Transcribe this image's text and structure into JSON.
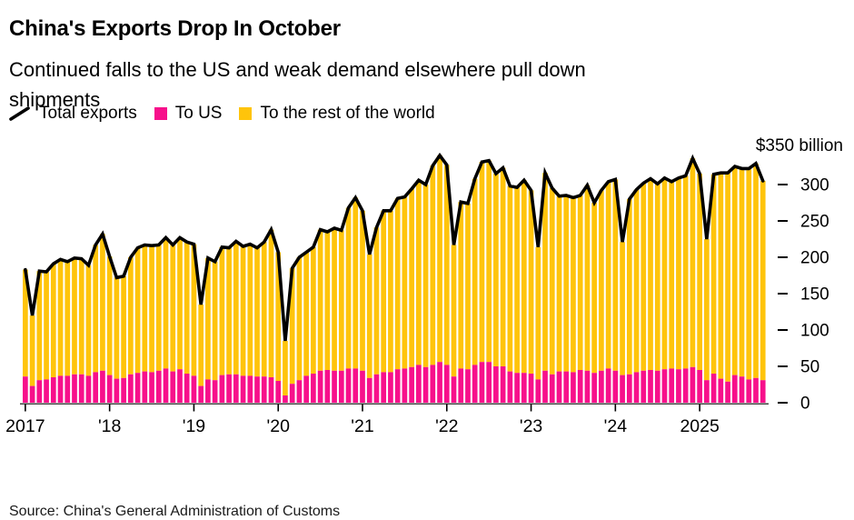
{
  "header": {
    "title": "China's Exports Drop In October",
    "subtitle_line1": "Continued falls to the US and weak demand elsewhere pull down",
    "subtitle_line2": "shipments"
  },
  "footer": {
    "source": "Source: China's General Administration of Customs"
  },
  "chart_data": {
    "type": "bar",
    "subtype": "stacked monthly bars with total line overlay",
    "unit": "USD billion",
    "frequency": "monthly",
    "x_start": "2017-01",
    "x_end": "2025-10",
    "ylim": [
      0,
      350
    ],
    "grid": false,
    "legend_position": "top-left",
    "y_axis": {
      "side": "right",
      "top_label": "$350 billion",
      "ticks": [
        0,
        50,
        100,
        150,
        200,
        250,
        300
      ]
    },
    "x_axis": {
      "years": [
        "2017",
        "'18",
        "'19",
        "'20",
        "'21",
        "'22",
        "'23",
        "'24",
        "2025"
      ]
    },
    "series": [
      {
        "id": "total",
        "name": "Total exports",
        "type": "line",
        "color": "#000000",
        "values": [
          183,
          120,
          181,
          180,
          191,
          197,
          194,
          199,
          198,
          189,
          217,
          232,
          201,
          172,
          174,
          200,
          213,
          217,
          216,
          217,
          227,
          217,
          227,
          221,
          218,
          135,
          199,
          194,
          214,
          213,
          222,
          215,
          218,
          213,
          221,
          238,
          207,
          85,
          185,
          200,
          207,
          214,
          238,
          235,
          240,
          237,
          268,
          282,
          264,
          204,
          241,
          264,
          264,
          281,
          283,
          294,
          306,
          300,
          326,
          340,
          327,
          217,
          276,
          274,
          308,
          331,
          333,
          315,
          323,
          298,
          296,
          306,
          292,
          214,
          316,
          295,
          284,
          285,
          282,
          285,
          299,
          275,
          292,
          304,
          307,
          221,
          280,
          293,
          302,
          308,
          301,
          309,
          304,
          309,
          312,
          336,
          315,
          225,
          314,
          316,
          316,
          325,
          322,
          322,
          329,
          305
        ]
      },
      {
        "id": "to_us",
        "name": "To US",
        "type": "bar",
        "color": "#f7108b",
        "values": [
          36,
          23,
          31,
          32,
          35,
          37,
          37,
          39,
          39,
          37,
          42,
          44,
          38,
          33,
          34,
          39,
          41,
          43,
          42,
          44,
          47,
          43,
          46,
          40,
          37,
          23,
          32,
          31,
          38,
          39,
          39,
          37,
          37,
          36,
          36,
          35,
          30,
          10,
          26,
          31,
          37,
          40,
          44,
          45,
          44,
          44,
          47,
          47,
          44,
          34,
          39,
          42,
          42,
          46,
          47,
          49,
          52,
          49,
          52,
          56,
          52,
          36,
          47,
          46,
          52,
          56,
          56,
          50,
          50,
          43,
          41,
          41,
          40,
          32,
          44,
          39,
          43,
          43,
          42,
          45,
          44,
          41,
          44,
          47,
          44,
          38,
          39,
          42,
          44,
          45,
          44,
          46,
          47,
          46,
          47,
          49,
          45,
          31,
          40,
          33,
          29,
          38,
          36,
          32,
          34,
          31
        ]
      },
      {
        "id": "rest_of_world",
        "name": "To the rest of the world",
        "type": "bar",
        "color": "#ffc40b",
        "derived": "total minus to_us (stacked on top of To US)"
      }
    ]
  }
}
